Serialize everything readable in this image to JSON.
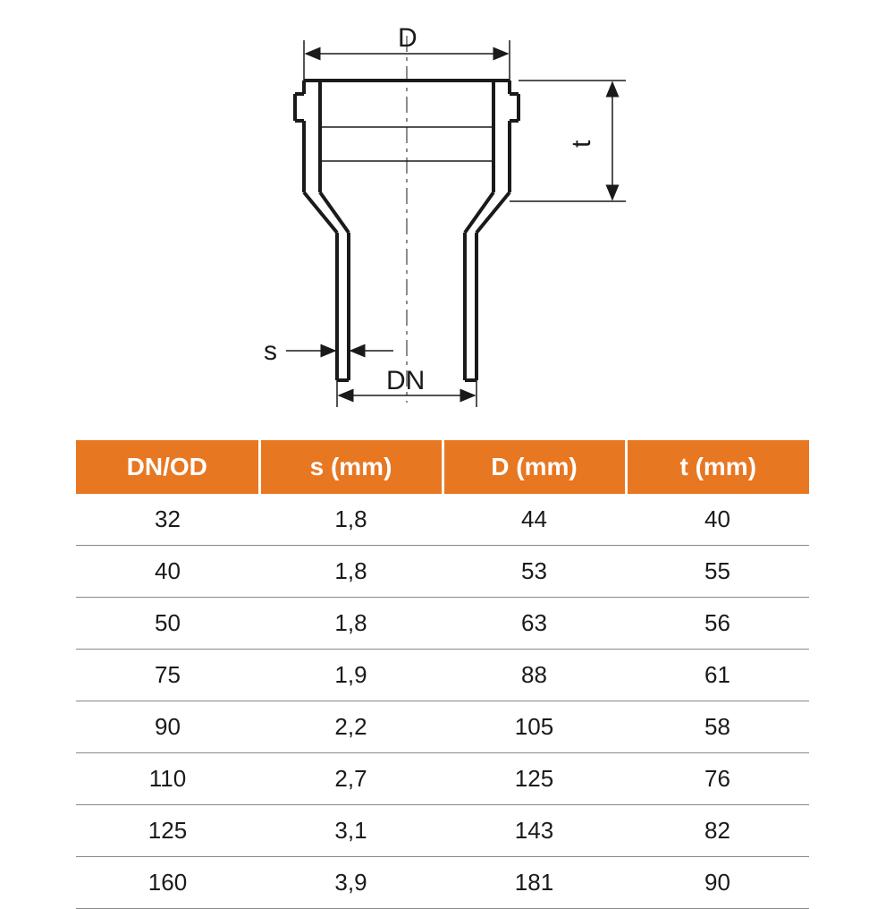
{
  "diagram": {
    "labels": {
      "D": "D",
      "t": "t",
      "s": "s",
      "DN": "DN"
    },
    "stroke_color": "#1a1a1a",
    "centerline_color": "#1a1a1a"
  },
  "table": {
    "header_bg": "#e87722",
    "header_fg": "#ffffff",
    "border_color": "#888888",
    "text_color": "#1a1a1a",
    "header_fontsize": 28,
    "cell_fontsize": 26,
    "columns": [
      "DN/OD",
      "s (mm)",
      "D (mm)",
      "t (mm)"
    ],
    "rows": [
      [
        "32",
        "1,8",
        "44",
        "40"
      ],
      [
        "40",
        "1,8",
        "53",
        "55"
      ],
      [
        "50",
        "1,8",
        "63",
        "56"
      ],
      [
        "75",
        "1,9",
        "88",
        "61"
      ],
      [
        "90",
        "2,2",
        "105",
        "58"
      ],
      [
        "110",
        "2,7",
        "125",
        "76"
      ],
      [
        "125",
        "3,1",
        "143",
        "82"
      ],
      [
        "160",
        "3,9",
        "181",
        "90"
      ]
    ]
  }
}
